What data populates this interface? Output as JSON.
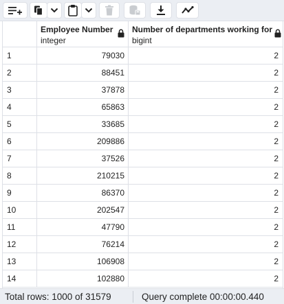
{
  "toolbar": {
    "icons": [
      "add-row-icon",
      "copy-icon",
      "chevron-down-icon",
      "paste-icon",
      "chevron-down-icon",
      "delete-icon",
      "save-data-icon",
      "download-icon",
      "graph-icon"
    ]
  },
  "grid": {
    "columns": [
      {
        "name": "",
        "type": ""
      },
      {
        "name": "Employee Number",
        "type": "integer",
        "locked": true
      },
      {
        "name": "Number of departments working for",
        "type": "bigint",
        "locked": true
      }
    ],
    "rows": [
      {
        "num": "1",
        "emp": "79030",
        "depts": "2"
      },
      {
        "num": "2",
        "emp": "88451",
        "depts": "2"
      },
      {
        "num": "3",
        "emp": "37878",
        "depts": "2"
      },
      {
        "num": "4",
        "emp": "65863",
        "depts": "2"
      },
      {
        "num": "5",
        "emp": "33685",
        "depts": "2"
      },
      {
        "num": "6",
        "emp": "209886",
        "depts": "2"
      },
      {
        "num": "7",
        "emp": "37526",
        "depts": "2"
      },
      {
        "num": "8",
        "emp": "210215",
        "depts": "2"
      },
      {
        "num": "9",
        "emp": "86370",
        "depts": "2"
      },
      {
        "num": "10",
        "emp": "202547",
        "depts": "2"
      },
      {
        "num": "11",
        "emp": "47790",
        "depts": "2"
      },
      {
        "num": "12",
        "emp": "76214",
        "depts": "2"
      },
      {
        "num": "13",
        "emp": "106908",
        "depts": "2"
      },
      {
        "num": "14",
        "emp": "102880",
        "depts": "2"
      }
    ]
  },
  "status": {
    "total_rows": "Total rows: 1000 of 31579",
    "query": "Query complete 00:00:00.440"
  },
  "colors": {
    "toolbar_bg": "#ebeef3",
    "border": "#dde0e6",
    "icon": "#222222",
    "icon_disabled": "#8a8f98"
  }
}
